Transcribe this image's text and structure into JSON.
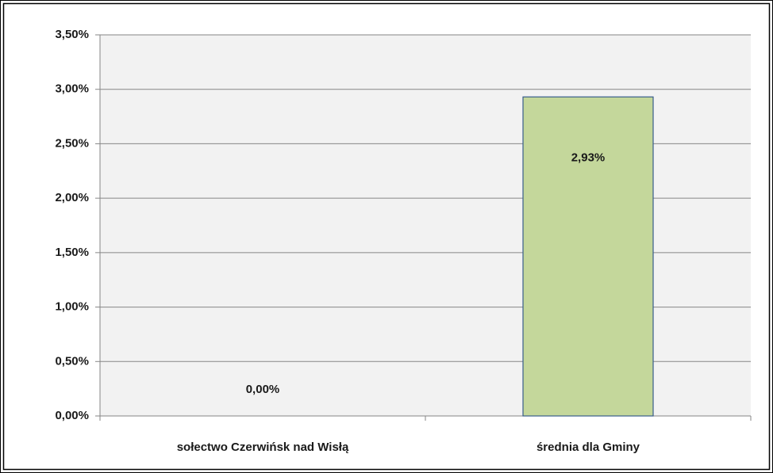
{
  "chart_data": {
    "type": "bar",
    "categories": [
      "sołectwo Czerwińsk nad Wisłą",
      "średnia dla Gminy"
    ],
    "values": [
      0,
      2.93
    ],
    "value_labels": [
      "0,00%",
      "2,93%"
    ],
    "color": "#c4d79b",
    "ylim": [
      0,
      3.5
    ],
    "yticks": [
      {
        "value": 0,
        "label": "0,00%"
      },
      {
        "value": 0.5,
        "label": "0,50%"
      },
      {
        "value": 1,
        "label": "1,00%"
      },
      {
        "value": 1.5,
        "label": "1,50%"
      },
      {
        "value": 2,
        "label": "2,00%"
      },
      {
        "value": 2.5,
        "label": "2,50%"
      },
      {
        "value": 3,
        "label": "3,00%"
      },
      {
        "value": 3.5,
        "label": "3,50%"
      }
    ],
    "grid": true
  }
}
